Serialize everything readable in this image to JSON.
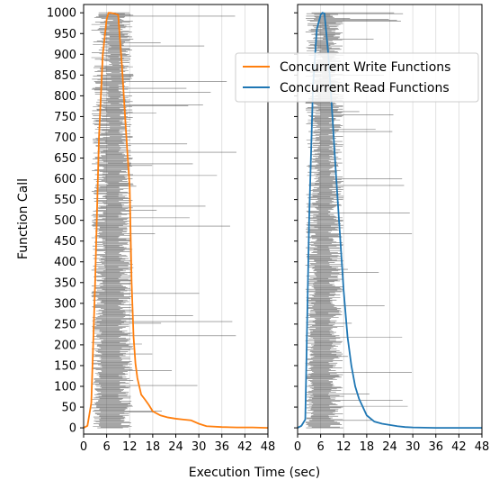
{
  "chart_data": {
    "type": "line",
    "xlabel": "Execution Time (sec)",
    "ylabel": "Function Call",
    "x_ticks": [
      0,
      6,
      12,
      18,
      24,
      30,
      36,
      42,
      48
    ],
    "y_ticks": [
      0,
      50,
      100,
      150,
      200,
      250,
      300,
      350,
      400,
      450,
      500,
      550,
      600,
      650,
      700,
      750,
      800,
      850,
      900,
      950,
      1000
    ],
    "xlim": [
      0,
      48
    ],
    "ylim": [
      -15,
      1020
    ],
    "grid": "vertical",
    "legend": {
      "position": "upper-right",
      "entries": [
        "Concurrent Write Functions",
        "Concurrent Read Functions"
      ]
    },
    "colors": {
      "write": "#ff7f0e",
      "read": "#1f77b4",
      "spans": "#404040"
    },
    "panels": [
      {
        "series": [
          {
            "name": "Concurrent Write Functions",
            "color": "#ff7f0e",
            "x": [
              0,
              1,
              2,
              3,
              4,
              5,
              6,
              6.5,
              7,
              8,
              9,
              10,
              11,
              12,
              12.5,
              13,
              13.5,
              14,
              15,
              16,
              17,
              18,
              20,
              22,
              24,
              26,
              28,
              30,
              32,
              36,
              40,
              44,
              48
            ],
            "y": [
              0,
              5,
              60,
              350,
              700,
              900,
              985,
              1000,
              1000,
              998,
              995,
              870,
              720,
              580,
              350,
              220,
              155,
              120,
              80,
              68,
              55,
              40,
              30,
              25,
              22,
              20,
              18,
              10,
              4,
              2,
              1,
              1,
              0
            ]
          }
        ],
        "spans": {
          "start_range": [
            2,
            8
          ],
          "typical_end": 12,
          "long_tail_max": 42
        }
      },
      {
        "series": [
          {
            "name": "Concurrent Read Functions",
            "color": "#1f77b4",
            "x": [
              0,
              1,
              2,
              3,
              4,
              5,
              6,
              6.5,
              7,
              8,
              9,
              10,
              11,
              12,
              13,
              14,
              15,
              16,
              17,
              18,
              20,
              22,
              24,
              26,
              28,
              30,
              36,
              42,
              48
            ],
            "y": [
              0,
              5,
              20,
              500,
              820,
              960,
              995,
              1000,
              998,
              900,
              760,
              610,
              470,
              330,
              220,
              150,
              100,
              70,
              50,
              30,
              15,
              10,
              7,
              4,
              2,
              1,
              0,
              0,
              0
            ]
          }
        ],
        "spans": {
          "start_range": [
            2,
            7
          ],
          "typical_end": 11,
          "long_tail_max": 30
        }
      }
    ]
  }
}
